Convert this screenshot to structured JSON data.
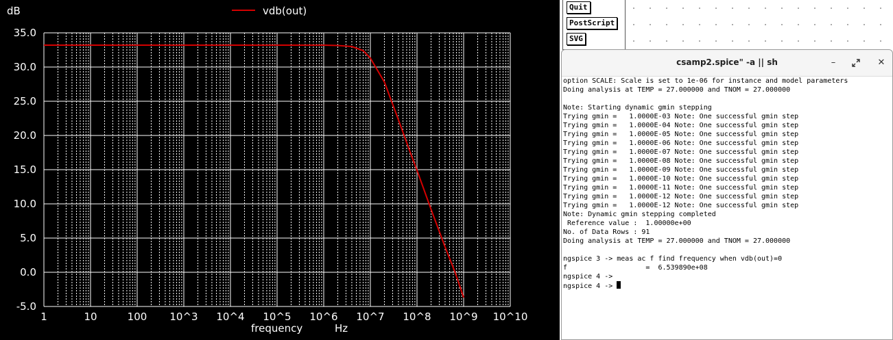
{
  "plot": {
    "y_unit": "dB",
    "x_label": "frequency",
    "x_unit": "Hz",
    "background": "#000000",
    "grid_color": "#ffffff",
    "trace_color": "#d40000"
  },
  "chart_data": {
    "type": "line",
    "xscale": "log",
    "xlim": [
      1,
      10000000000
    ],
    "ylim": [
      -5,
      35
    ],
    "ylabel": "dB",
    "xlabel": "frequency",
    "x_ticks": [
      "1",
      "10",
      "100",
      "10^3",
      "10^4",
      "10^5",
      "10^6",
      "10^7",
      "10^8",
      "10^9",
      "10^10"
    ],
    "y_ticks": [
      "35.0",
      "30.0",
      "25.0",
      "20.0",
      "15.0",
      "10.0",
      "5.0",
      "0.0",
      "-5.0"
    ],
    "legend_position": "top-center",
    "series": [
      {
        "name": "vdb(out)",
        "color": "#d40000",
        "x": [
          1,
          10,
          100,
          1000,
          10000,
          100000,
          1000000,
          2000000,
          4000000,
          7000000,
          10000000,
          20000000,
          40000000,
          70000000,
          100000000,
          200000000,
          400000000,
          653989000,
          1000000000
        ],
        "y": [
          33.2,
          33.2,
          33.2,
          33.2,
          33.2,
          33.2,
          33.2,
          33.15,
          33.0,
          32.4,
          31.3,
          27.8,
          22.3,
          17.7,
          14.9,
          9.2,
          3.7,
          0.0,
          -3.7
        ]
      }
    ]
  },
  "buttons": {
    "quit": "Quit",
    "postscript": "PostScript",
    "svg": "SVG"
  },
  "terminal": {
    "title": "csamp2.spice\" -a || sh",
    "minimize_icon": "minimize-icon",
    "maximize_icon": "maximize-icon",
    "close_icon": "close-icon",
    "lines": [
      "option SCALE: Scale is set to 1e-06 for instance and model parameters",
      "Doing analysis at TEMP = 27.000000 and TNOM = 27.000000",
      "",
      "Note: Starting dynamic gmin stepping",
      "Trying gmin =   1.0000E-03 Note: One successful gmin step",
      "Trying gmin =   1.0000E-04 Note: One successful gmin step",
      "Trying gmin =   1.0000E-05 Note: One successful gmin step",
      "Trying gmin =   1.0000E-06 Note: One successful gmin step",
      "Trying gmin =   1.0000E-07 Note: One successful gmin step",
      "Trying gmin =   1.0000E-08 Note: One successful gmin step",
      "Trying gmin =   1.0000E-09 Note: One successful gmin step",
      "Trying gmin =   1.0000E-10 Note: One successful gmin step",
      "Trying gmin =   1.0000E-11 Note: One successful gmin step",
      "Trying gmin =   1.0000E-12 Note: One successful gmin step",
      "Trying gmin =   1.0000E-12 Note: One successful gmin step",
      "Note: Dynamic gmin stepping completed",
      " Reference value :  1.00000e+00",
      "No. of Data Rows : 91",
      "Doing analysis at TEMP = 27.000000 and TNOM = 27.000000",
      "",
      "ngspice 3 -> meas ac f find frequency when vdb(out)=0",
      "f                   =  6.539890e+08",
      "ngspice 4 ->",
      "ngspice 4 -> "
    ]
  }
}
